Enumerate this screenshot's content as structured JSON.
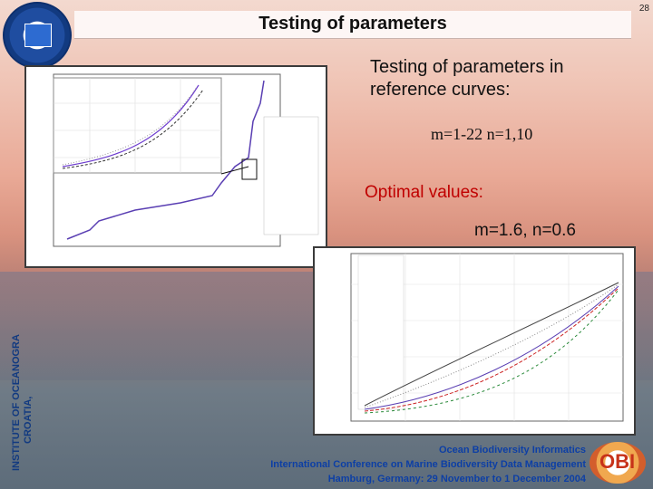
{
  "header": {
    "title": "Testing of parameters",
    "page_number": "28"
  },
  "body": {
    "line1": "Testing of parameters in reference curves:",
    "line2": "m=1-22  n=1,10",
    "line3": "Optimal  values:",
    "line4": "m=1.6,  n=0.6"
  },
  "sidebar": {
    "institute": "INSTITUTE OF OCEANOGRA",
    "country": "CROATIA,"
  },
  "footer": {
    "line1": "Ocean Biodiversity Informatics",
    "line2": "International Conference on Marine Biodiversity Data Management",
    "line3": "Hamburg, Germany: 29 November to 1 December 2004"
  },
  "logo": {
    "text": "OBI"
  },
  "colors": {
    "accent": "#c00000",
    "footer": "#0d3fa5"
  }
}
